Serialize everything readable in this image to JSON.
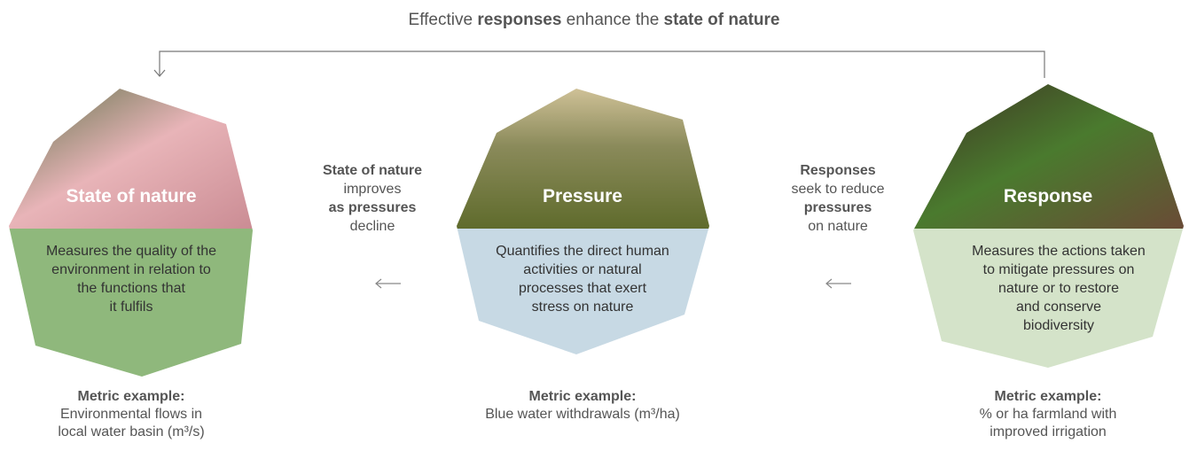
{
  "title": [
    "Effective ",
    "responses",
    " enhance the ",
    "state of nature"
  ],
  "panels": [
    {
      "label": "State of nature",
      "description": [
        "Measures the quality of the",
        "environment in relation to",
        "the functions that",
        "it fulfils"
      ],
      "metric_title": "Metric example:",
      "metric": [
        "Environmental flows in",
        "local water basin (m³/s)"
      ]
    },
    {
      "label": "Pressure",
      "description": [
        "Quantifies the direct human",
        "activities or natural",
        "processes that exert",
        "stress on nature"
      ],
      "metric_title": "Metric example:",
      "metric": [
        "Blue water withdrawals (m³/ha)"
      ]
    },
    {
      "label": "Response",
      "description": [
        "Measures the actions taken",
        "to mitigate pressures on",
        "nature or to restore",
        "and conserve",
        "biodiversity"
      ],
      "metric_title": "Metric example:",
      "metric": [
        "% or ha farmland with",
        "improved irrigation"
      ]
    }
  ],
  "connectors": [
    {
      "lines": [
        "State of nature",
        "improves",
        "as pressures",
        "decline"
      ]
    },
    {
      "lines": [
        "Responses",
        "seek to reduce",
        "pressures",
        "on nature"
      ]
    }
  ]
}
